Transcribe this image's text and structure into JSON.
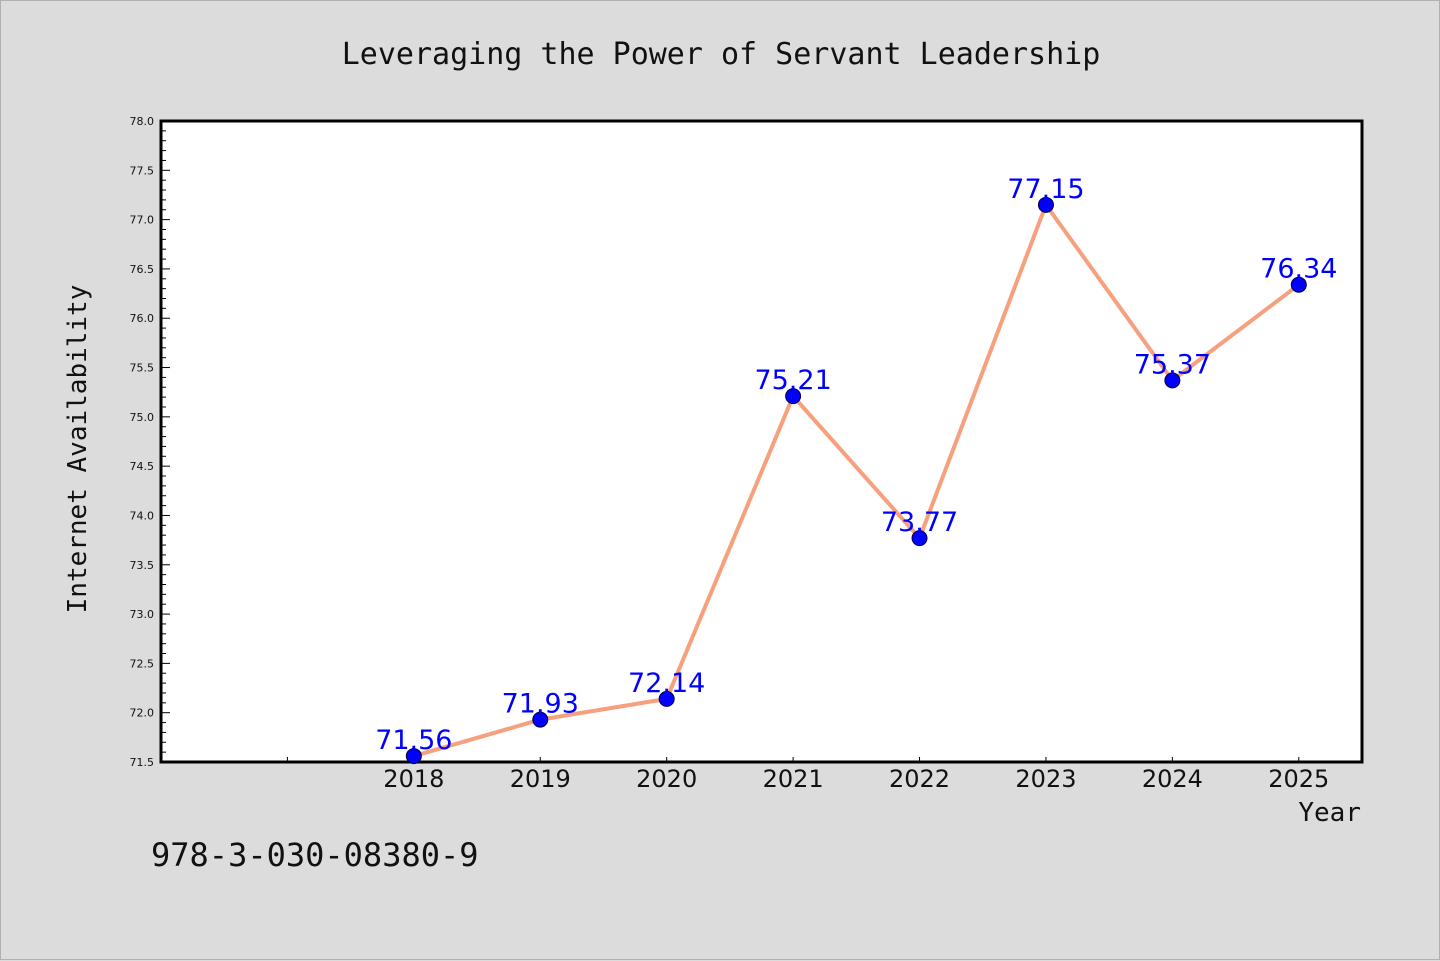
{
  "chart_data": {
    "type": "line",
    "title": "Leveraging the Power of Servant Leadership",
    "xlabel": "Year",
    "ylabel": "Internet Availability",
    "x": [
      2018,
      2019,
      2020,
      2021,
      2022,
      2023,
      2024,
      2025
    ],
    "x_tick_labels": [
      "2018",
      "2019",
      "2020",
      "2021",
      "2022",
      "2023",
      "2024",
      "2025"
    ],
    "xlim": [
      2016,
      2025.5
    ],
    "ylim": [
      71.5,
      78.0
    ],
    "y_ticks": [
      "71.5",
      "72.0",
      "72.5",
      "73.0",
      "73.5",
      "74.0",
      "74.5",
      "75.0",
      "75.5",
      "76.0",
      "76.5",
      "77.0",
      "77.5",
      "78.0"
    ],
    "series": [
      {
        "values": [
          71.56,
          71.93,
          72.14,
          75.21,
          73.77,
          77.15,
          75.37,
          76.34
        ],
        "data_labels": [
          "71.56",
          "71.93",
          "72.14",
          "75.21",
          "73.77",
          "77.15",
          "75.37",
          "76.34"
        ],
        "line_color": "#f7a07e",
        "marker_color": "#0000ff"
      }
    ],
    "grid": false,
    "legend": "none"
  },
  "footer": {
    "isbn": "978-3-030-08380-9"
  }
}
